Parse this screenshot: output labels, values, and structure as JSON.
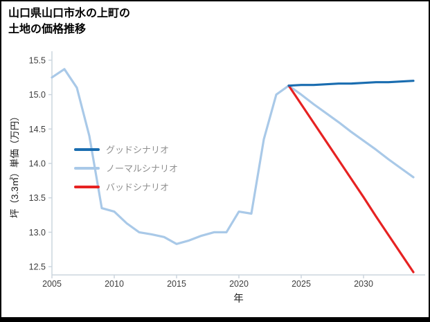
{
  "title": {
    "line1": "山口県山口市水の上町の",
    "line2": "土地の価格推移"
  },
  "chart_data": {
    "type": "line",
    "title": "山口県山口市水の上町の土地の価格推移",
    "xlabel": "年",
    "ylabel": "坪（3.3㎡）単価（万円）",
    "xlim": [
      2005,
      2034
    ],
    "ylim": [
      12.38,
      15.63
    ],
    "xticks": [
      2005,
      2010,
      2015,
      2020,
      2025,
      2030
    ],
    "xtick_labels": [
      "2005",
      "2010",
      "2015",
      "2020",
      "2025",
      "2030"
    ],
    "yticks": [
      12.5,
      13.0,
      13.5,
      14.0,
      14.5,
      15.0,
      15.5
    ],
    "ytick_labels": [
      "12.5",
      "13.0",
      "13.5",
      "14.0",
      "14.5",
      "15.0",
      "15.5"
    ],
    "grid": false,
    "legend_position": "center-left",
    "axis_color": "#ccd6de",
    "tick_label_color": "#3d3d3d",
    "legend_text_color": "#8f8f8f",
    "series": [
      {
        "key": "good",
        "name": "グッドシナリオ",
        "color": "#1a6db0",
        "x": [
          2024,
          2025,
          2026,
          2027,
          2028,
          2029,
          2030,
          2031,
          2032,
          2033,
          2034
        ],
        "y": [
          15.13,
          15.14,
          15.14,
          15.15,
          15.16,
          15.16,
          15.17,
          15.18,
          15.18,
          15.19,
          15.2
        ]
      },
      {
        "key": "normal",
        "name": "ノーマルシナリオ",
        "color": "#a9c9e8",
        "x": [
          2005,
          2006,
          2007,
          2008,
          2009,
          2010,
          2011,
          2012,
          2013,
          2014,
          2015,
          2016,
          2017,
          2018,
          2019,
          2020,
          2021,
          2022,
          2023,
          2024,
          2025,
          2026,
          2027,
          2028,
          2029,
          2030,
          2031,
          2032,
          2033,
          2034
        ],
        "y": [
          15.25,
          15.37,
          15.1,
          14.4,
          13.35,
          13.3,
          13.13,
          13.0,
          12.97,
          12.93,
          12.83,
          12.88,
          12.95,
          13.0,
          13.0,
          13.3,
          13.27,
          14.35,
          15.0,
          15.13,
          15.0,
          14.86,
          14.73,
          14.6,
          14.46,
          14.33,
          14.2,
          14.06,
          13.93,
          13.8
        ]
      },
      {
        "key": "bad",
        "name": "バッドシナリオ",
        "color": "#e62222",
        "x": [
          2024,
          2025,
          2026,
          2027,
          2028,
          2029,
          2030,
          2031,
          2032,
          2033,
          2034
        ],
        "y": [
          15.13,
          14.86,
          14.59,
          14.32,
          14.05,
          13.78,
          13.51,
          13.23,
          12.96,
          12.69,
          12.42
        ]
      }
    ]
  }
}
